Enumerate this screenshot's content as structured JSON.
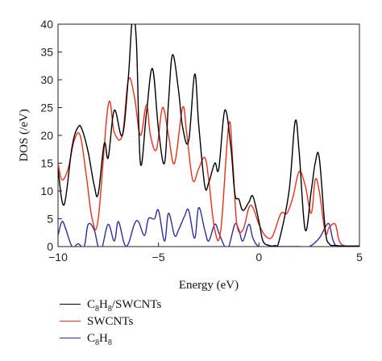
{
  "chart_data": {
    "type": "line",
    "xlabel": "Energy (eV)",
    "ylabel": "DOS (/eV)",
    "xlim": [
      -10,
      5
    ],
    "ylim": [
      0,
      40
    ],
    "xticks": [
      -10,
      -5,
      0,
      5
    ],
    "yticks": [
      0,
      5,
      10,
      15,
      20,
      25,
      30,
      35,
      40
    ],
    "xtick_labels": [
      "−10",
      "−5",
      "0",
      "5"
    ],
    "ytick_labels": [
      "0",
      "5",
      "10",
      "15",
      "20",
      "25",
      "30",
      "35",
      "40"
    ],
    "grid": false,
    "legend_position": "bottom-left, below plot",
    "series": [
      {
        "name": "C8H8/SWCNTs",
        "color": "#000000",
        "x": [
          -10,
          -9.7,
          -9.3,
          -9.0,
          -8.8,
          -8.5,
          -8.2,
          -8.0,
          -7.7,
          -7.5,
          -7.2,
          -6.8,
          -6.5,
          -6.3,
          -6.1,
          -5.9,
          -5.6,
          -5.3,
          -5.0,
          -4.7,
          -4.5,
          -4.3,
          -4.0,
          -3.8,
          -3.5,
          -3.2,
          -3.0,
          -2.7,
          -2.5,
          -2.2,
          -2.0,
          -1.7,
          -1.4,
          -1.2,
          -1.0,
          -0.8,
          -0.5,
          -0.3,
          0.0,
          0.2,
          0.5,
          0.8,
          1.0,
          1.5,
          1.8,
          2.0,
          2.3,
          2.6,
          2.8,
          3.0,
          3.3,
          3.5,
          3.8,
          4.2,
          5.0
        ],
        "y": [
          14,
          7.5,
          18,
          21.5,
          21,
          17,
          11,
          9.5,
          18.5,
          16,
          24.5,
          20,
          30.5,
          41,
          37,
          15,
          24,
          32,
          21,
          15,
          26,
          34.5,
          28,
          21.5,
          19,
          31,
          22,
          11,
          11.5,
          15,
          14,
          24.5,
          18,
          9.5,
          8.5,
          6.5,
          8,
          9,
          4.5,
          1,
          0.2,
          0.2,
          1,
          10,
          22.5,
          17,
          3,
          10,
          15,
          16,
          3,
          0.5,
          0.2,
          0.1,
          0.1
        ]
      },
      {
        "name": "SWCNTs",
        "color": "#e8301e",
        "x": [
          -10,
          -9.8,
          -9.5,
          -9.2,
          -8.9,
          -8.6,
          -8.3,
          -8.0,
          -7.5,
          -7.2,
          -6.8,
          -6.5,
          -6.2,
          -5.9,
          -5.6,
          -5.4,
          -5.1,
          -4.8,
          -4.5,
          -4.2,
          -3.8,
          -3.6,
          -3.3,
          -3.0,
          -2.7,
          -2.5,
          -2.2,
          -1.9,
          -1.5,
          -1.3,
          -1.1,
          -0.8,
          -0.5,
          -0.3,
          0.0,
          0.3,
          0.6,
          0.8,
          1.1,
          1.4,
          1.7,
          2.0,
          2.3,
          2.6,
          2.8,
          3.0,
          3.3,
          3.5,
          3.8,
          4.0,
          4.3,
          5.0
        ],
        "y": [
          15,
          12,
          14,
          19,
          20,
          13,
          5,
          5,
          25.5,
          20.5,
          20,
          30,
          27,
          20,
          25.5,
          20,
          17.5,
          25,
          20,
          15,
          25,
          20.5,
          12,
          14,
          16,
          12,
          3,
          3,
          22,
          15,
          4,
          3,
          7,
          7,
          4,
          2,
          1.5,
          3,
          6,
          6,
          9,
          13.5,
          11,
          6,
          12,
          10,
          2.5,
          3.5,
          4,
          1,
          0.1,
          0.1
        ]
      },
      {
        "name": "C8H8",
        "color": "#2e2e9a",
        "x": [
          -10,
          -9.8,
          -9.6,
          -9.3,
          -9.0,
          -8.7,
          -8.5,
          -8.2,
          -8.0,
          -7.8,
          -7.5,
          -7.2,
          -7.0,
          -6.7,
          -6.5,
          -6.2,
          -6.0,
          -5.7,
          -5.5,
          -5.2,
          -5.0,
          -4.7,
          -4.5,
          -4.2,
          -4.0,
          -3.7,
          -3.5,
          -3.2,
          -3.0,
          -2.7,
          -2.5,
          -2.2,
          -2.0,
          -1.7,
          -1.5,
          -1.2,
          -1.0,
          -0.8,
          -0.5,
          -0.3,
          0.0,
          0.5,
          1.0,
          2.0,
          2.5,
          3.0,
          3.3,
          3.5,
          3.7,
          4.0,
          5.0
        ],
        "y": [
          2,
          4.5,
          3,
          0,
          0.5,
          0,
          4,
          3,
          0,
          0,
          4,
          1,
          4.5,
          0.5,
          0.5,
          4,
          4.5,
          2,
          5,
          5,
          6.5,
          1,
          6,
          2,
          3,
          5.5,
          6.5,
          1.5,
          7,
          3,
          1,
          4,
          2.5,
          0,
          0,
          4,
          3,
          1,
          4,
          1.5,
          0,
          0,
          0,
          0,
          0,
          1.5,
          3.5,
          4,
          1,
          0,
          0
        ]
      }
    ]
  },
  "legend": {
    "items": [
      {
        "base": "C",
        "sub1": "8",
        "mid": "H",
        "sub2": "8",
        "tail": "/SWCNTs",
        "color": "#000000"
      },
      {
        "text": "SWCNTs",
        "color": "#e8301e"
      },
      {
        "base": "C",
        "sub1": "8",
        "mid": "H",
        "sub2": "8",
        "tail": "",
        "color": "#2e2e9a"
      }
    ]
  }
}
